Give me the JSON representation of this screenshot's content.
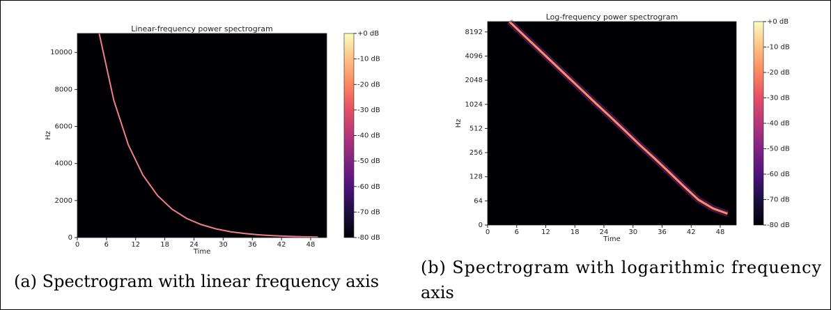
{
  "chart_data": [
    {
      "type": "spectrogram",
      "title": "Linear-frequency power spectrogram",
      "xlabel": "Time",
      "ylabel": "Hz",
      "yscale": "linear",
      "x": [
        4.5,
        7.5,
        10.5,
        13.5,
        16.5,
        19.5,
        22.5,
        25.5,
        28.5,
        31.5,
        34.5,
        37.5,
        40.5,
        43.5,
        46.5,
        49.5
      ],
      "series": [
        {
          "color": "#f07f8a",
          "values": [
            11025,
            7420,
            5000,
            3370,
            2270,
            1530,
            1030,
            700,
            470,
            315,
            215,
            145,
            97,
            66,
            44,
            30
          ]
        }
      ],
      "xlim": [
        0,
        51.3
      ],
      "ylim": [
        0,
        11025
      ],
      "xticks": [
        0,
        6,
        12,
        18,
        24,
        30,
        36,
        42,
        48
      ],
      "yticks": [
        0,
        2000,
        4000,
        6000,
        8000,
        10000
      ],
      "clim": [
        -80,
        0
      ],
      "cticks": [
        {
          "value": 0,
          "label": "+0 dB"
        },
        {
          "value": -10,
          "label": "-10 dB"
        },
        {
          "value": -20,
          "label": "-20 dB"
        },
        {
          "value": -30,
          "label": "-30 dB"
        },
        {
          "value": -40,
          "label": "-40 dB"
        },
        {
          "value": -50,
          "label": "-50 dB"
        },
        {
          "value": -60,
          "label": "-60 dB"
        },
        {
          "value": -70,
          "label": "-70 dB"
        },
        {
          "value": -80,
          "label": "-80 dB"
        }
      ],
      "caption": "(a) Spectrogram with linear frequency axis"
    },
    {
      "type": "spectrogram",
      "title": "Log-frequency power spectrogram",
      "xlabel": "Time",
      "ylabel": "Hz",
      "yscale": "symlog",
      "linthresh": 64,
      "x": [
        4.5,
        7.5,
        10.5,
        13.5,
        16.5,
        19.5,
        22.5,
        25.5,
        28.5,
        31.5,
        34.5,
        37.5,
        40.5,
        43.5,
        46.5,
        49.5
      ],
      "series": [
        {
          "color": "#f98e6d",
          "values": [
            11025,
            7420,
            5000,
            3370,
            2270,
            1530,
            1030,
            700,
            470,
            315,
            215,
            145,
            97,
            66,
            44,
            30
          ]
        }
      ],
      "xlim": [
        0,
        51.3
      ],
      "ylim": [
        0,
        11025
      ],
      "xticks": [
        0,
        6,
        12,
        18,
        24,
        30,
        36,
        42,
        48
      ],
      "yticks": [
        0,
        64,
        128,
        256,
        512,
        1024,
        2048,
        4096,
        8192
      ],
      "clim": [
        -80,
        0
      ],
      "cticks": [
        {
          "value": 0,
          "label": "+0 dB"
        },
        {
          "value": -10,
          "label": "-10 dB"
        },
        {
          "value": -20,
          "label": "-20 dB"
        },
        {
          "value": -30,
          "label": "-30 dB"
        },
        {
          "value": -40,
          "label": "-40 dB"
        },
        {
          "value": -50,
          "label": "-50 dB"
        },
        {
          "value": -60,
          "label": "-60 dB"
        },
        {
          "value": -70,
          "label": "-70 dB"
        },
        {
          "value": -80,
          "label": "-80 dB"
        }
      ],
      "caption": "(b) Spectrogram with logarithmic frequency axis"
    }
  ]
}
